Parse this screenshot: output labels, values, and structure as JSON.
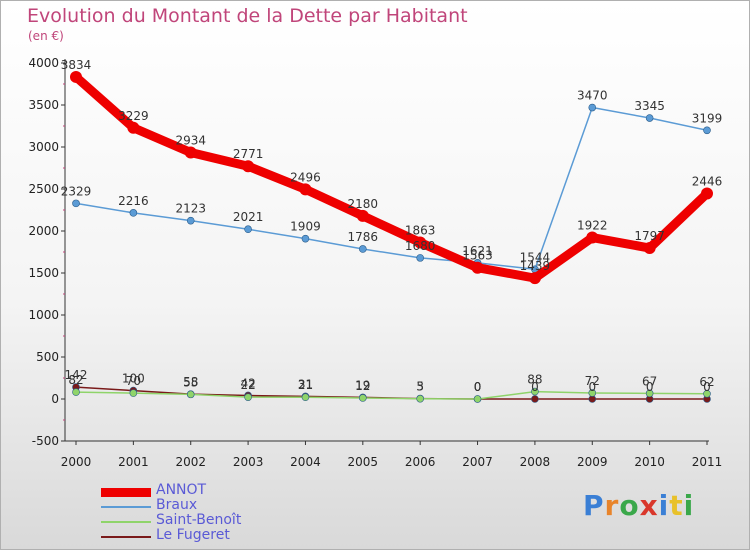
{
  "header": {
    "title": "Evolution du Montant de la Dette par Habitant",
    "unit": "(en €)"
  },
  "logo": {
    "text": "Proxiti",
    "colors": [
      "#3a7fd5",
      "#e8842a",
      "#3aa84a",
      "#d9372b",
      "#3a7fd5",
      "#e8c12a",
      "#3aa84a"
    ]
  },
  "chart_data": {
    "type": "line",
    "title": "Evolution du Montant de la Dette par Habitant",
    "ylabel": "(en €)",
    "xlabel": "",
    "x": [
      "2000",
      "2001",
      "2002",
      "2003",
      "2004",
      "2005",
      "2006",
      "2007",
      "2008",
      "2009",
      "2010",
      "2011"
    ],
    "ylim": [
      -500,
      4000
    ],
    "yticks": [
      "-500",
      "0",
      "500",
      "1000",
      "1500",
      "2000",
      "2500",
      "3000",
      "3500",
      "4000"
    ],
    "grid": false,
    "legend": "bottom-left",
    "series": [
      {
        "name": "ANNOT",
        "color": "#ee0000",
        "values": [
          3834,
          3229,
          2934,
          2771,
          2496,
          2180,
          1863,
          1563,
          1439,
          1922,
          1797,
          2446
        ]
      },
      {
        "name": "Braux",
        "color": "#5b9bd5",
        "values": [
          2329,
          2216,
          2123,
          2021,
          1909,
          1786,
          1680,
          1621,
          1544,
          3470,
          3345,
          3199
        ]
      },
      {
        "name": "Saint-Benoît",
        "color": "#8fd46a",
        "values": [
          82,
          70,
          55,
          22,
          21,
          12,
          3,
          0,
          88,
          72,
          67,
          62
        ]
      },
      {
        "name": "Le Fugeret",
        "color": "#7a1a1a",
        "values": [
          142,
          100,
          58,
          42,
          31,
          19,
          5,
          0,
          0,
          0,
          0,
          0
        ]
      }
    ]
  }
}
